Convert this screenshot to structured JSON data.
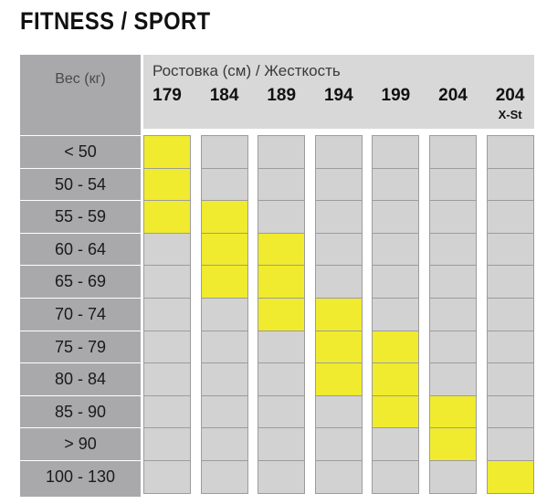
{
  "title": "FITNESS / SPORT",
  "weight_header": "Вес (кг)",
  "size_header": "Ростовка (см) / Жесткость",
  "colors": {
    "active": "#f0eb2f",
    "inactive": "#d2d2d2",
    "row_header": "#a9a9ab",
    "col_header": "#d8d8d8"
  },
  "chart_data": {
    "type": "table",
    "title": "FITNESS / SPORT",
    "row_header": "Вес (кг)",
    "column_header": "Ростовка (см) / Жесткость",
    "columns": [
      {
        "label": "179",
        "sub": ""
      },
      {
        "label": "184",
        "sub": ""
      },
      {
        "label": "189",
        "sub": ""
      },
      {
        "label": "194",
        "sub": ""
      },
      {
        "label": "199",
        "sub": ""
      },
      {
        "label": "204",
        "sub": ""
      },
      {
        "label": "204",
        "sub": "X-St"
      }
    ],
    "rows": [
      "< 50",
      "50 - 54",
      "55 - 59",
      "60 - 64",
      "65 - 69",
      "70 - 74",
      "75 - 79",
      "80 - 84",
      "85 - 90",
      "> 90",
      "100 - 130"
    ],
    "recommended": [
      [
        1,
        0,
        0,
        0,
        0,
        0,
        0
      ],
      [
        1,
        0,
        0,
        0,
        0,
        0,
        0
      ],
      [
        1,
        1,
        0,
        0,
        0,
        0,
        0
      ],
      [
        0,
        1,
        1,
        0,
        0,
        0,
        0
      ],
      [
        0,
        1,
        1,
        0,
        0,
        0,
        0
      ],
      [
        0,
        0,
        1,
        1,
        0,
        0,
        0
      ],
      [
        0,
        0,
        0,
        1,
        1,
        0,
        0
      ],
      [
        0,
        0,
        0,
        1,
        1,
        0,
        0
      ],
      [
        0,
        0,
        0,
        0,
        1,
        1,
        0
      ],
      [
        0,
        0,
        0,
        0,
        0,
        1,
        0
      ],
      [
        0,
        0,
        0,
        0,
        0,
        0,
        1
      ]
    ]
  }
}
